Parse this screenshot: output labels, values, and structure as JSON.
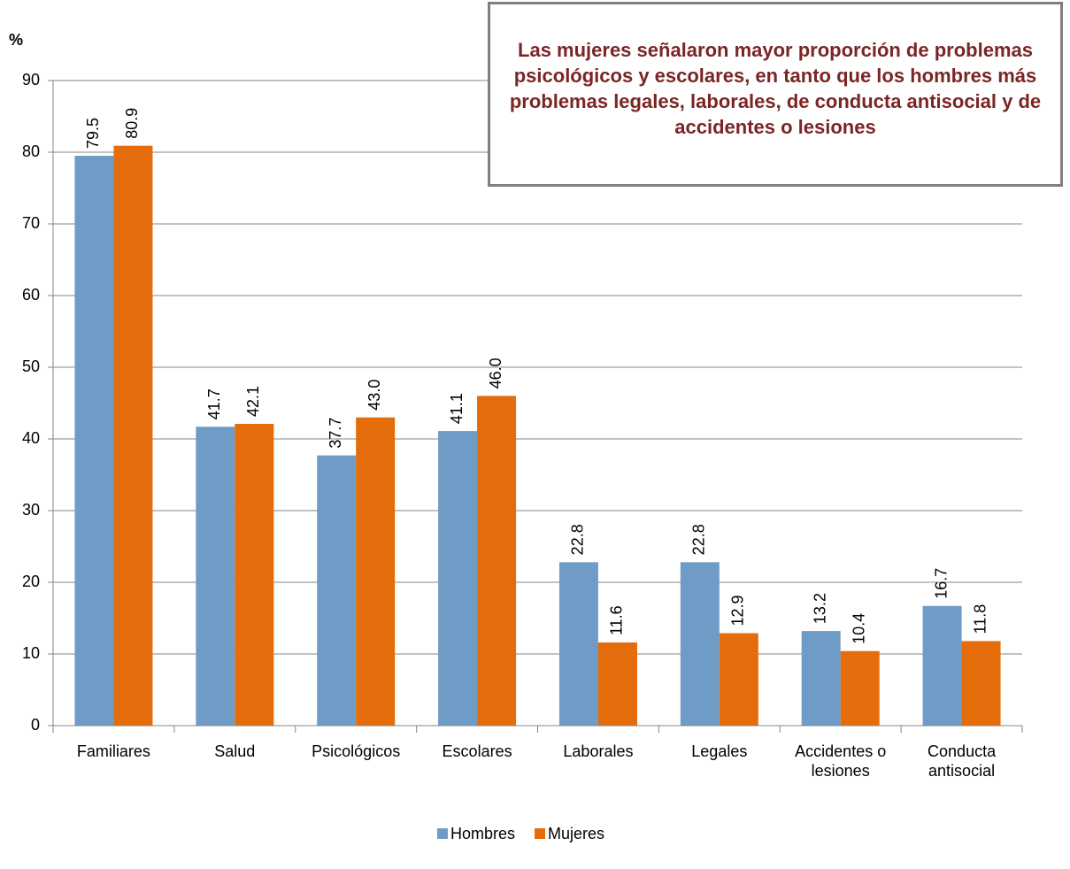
{
  "chart_data": {
    "type": "bar",
    "annotation": "Las mujeres señalaron mayor proporción de problemas psicológicos y escolares, en tanto que los hombres más problemas legales, laborales, de conducta antisocial y de accidentes o lesiones",
    "ylabel": "%",
    "categories": [
      "Familiares",
      "Salud",
      "Psicológicos",
      "Escolares",
      "Laborales",
      "Legales",
      "Accidentes o lesiones",
      "Conducta antisocial"
    ],
    "series": [
      {
        "name": "Hombres",
        "color": "#6f9cc6",
        "values": [
          79.5,
          41.7,
          37.7,
          41.1,
          22.8,
          22.8,
          13.2,
          16.7
        ],
        "value_labels": [
          "79.5",
          "41.7",
          "37.7",
          "41.1",
          "22.8",
          "22.8",
          "13.2",
          "16.7"
        ]
      },
      {
        "name": "Mujeres",
        "color": "#e46c0a",
        "values": [
          80.9,
          42.1,
          43,
          46,
          11.6,
          12.9,
          10.4,
          11.8
        ],
        "value_labels": [
          "80.9",
          "42.1",
          "43.0",
          "46.0",
          "11.6",
          "12.9",
          "10.4",
          "11.8"
        ]
      }
    ],
    "ylim": [
      0,
      90
    ],
    "yticks": [
      0,
      10,
      20,
      30,
      40,
      50,
      60,
      70,
      80,
      90
    ],
    "grid": true,
    "legend": "bottom"
  }
}
